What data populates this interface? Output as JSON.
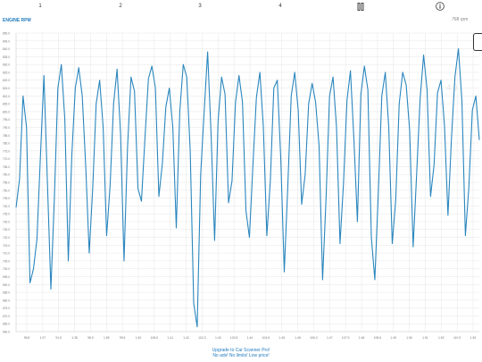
{
  "tabs": [
    {
      "label": "1"
    },
    {
      "label": "2"
    },
    {
      "label": "3"
    },
    {
      "label": "4"
    }
  ],
  "chart_title": "ENGINE RPM",
  "unit_label": "768  rpm",
  "ghost_value": "4.0",
  "footer": {
    "line1": "Upgrade to Car Scanner Pro!",
    "line2": "No ads! No limits! Low price!"
  },
  "colors": {
    "line": "#2a86be",
    "accent": "#1f7bbf",
    "grid": "#e6e6e6"
  },
  "chart_data": {
    "type": "line",
    "title": "ENGINE RPM",
    "y_ticks": [
      "850.0",
      "845.0",
      "840.0",
      "835.0",
      "830.0",
      "825.0",
      "820.0",
      "815.0",
      "810.0",
      "805.0",
      "800.0",
      "795.0",
      "790.0",
      "785.0",
      "780.0",
      "775.0",
      "770.0",
      "765.0",
      "760.0",
      "755.0",
      "750.0",
      "745.0",
      "740.0",
      "735.0",
      "730.0",
      "725.0",
      "720.0",
      "715.0",
      "710.0",
      "705.0",
      "700.0",
      "695.0",
      "690.0",
      "685.0",
      "680.0",
      "675.0",
      "670.0",
      "665.0",
      "660.0"
    ],
    "x_ticks": [
      "98.8",
      "1.07",
      "91.5",
      "1.38",
      "98.9",
      "1.55",
      "99.5",
      "1.40",
      "108.6",
      "1.41",
      "1.42",
      "102.3",
      "1.43",
      "103.5",
      "1.44",
      "104.6",
      "1.45",
      "1.46",
      "106.3",
      "1.47",
      "107.5",
      "1.48",
      "108.6",
      "1.49",
      "1.50",
      "1.51",
      "1.52",
      "110.9",
      "1.53"
    ],
    "ylim": [
      660,
      850
    ],
    "grid": true,
    "series": [
      {
        "values": [
          739,
          757,
          810,
          790,
          691,
          700,
          719,
          772,
          823,
          755,
          687,
          745,
          815,
          830,
          795,
          705,
          772,
          815,
          828,
          810,
          765,
          710,
          751,
          805,
          820,
          790,
          721,
          753,
          805,
          827,
          786,
          705,
          777,
          822,
          813,
          751,
          743,
          783,
          821,
          829,
          815,
          746,
          767,
          803,
          815,
          790,
          726,
          800,
          830,
          822,
          775,
          678,
          663,
          760,
          800,
          838,
          785,
          718,
          794,
          822,
          811,
          742,
          756,
          806,
          823,
          806,
          737,
          720,
          766,
          809,
          825,
          790,
          721,
          756,
          815,
          820,
          770,
          698,
          752,
          810,
          825,
          801,
          741,
          760,
          805,
          818,
          806,
          778,
          693,
          745,
          810,
          822,
          790,
          716,
          754,
          807,
          826,
          782,
          730,
          811,
          829,
          814,
          720,
          693,
          748,
          810,
          825,
          790,
          716,
          744,
          805,
          825,
          817,
          788,
          714,
          760,
          808,
          836,
          814,
          746,
          766,
          812,
          820,
          791,
          734,
          783,
          822,
          840,
          807,
          721,
          752,
          801,
          810,
          782
        ]
      }
    ]
  }
}
